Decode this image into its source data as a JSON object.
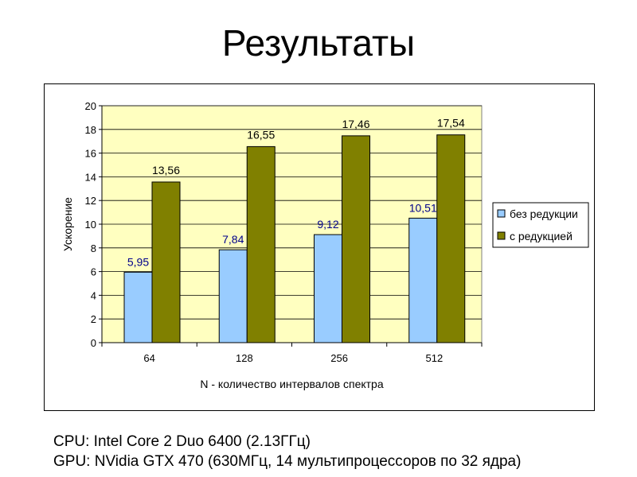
{
  "slide": {
    "title": "Результаты"
  },
  "footer": {
    "cpu": "CPU: Intel Core 2 Duo 6400 (2.13ГГц)",
    "gpu": "GPU: NVidia  GTX 470 (630МГц, 14 мультипроцессоров  по 32 ядра)"
  },
  "colors": {
    "plot_area": "#FFFFC0",
    "series_without": "#99CCFF",
    "series_with": "#808000",
    "label_without": "#00008B",
    "label_with": "#000000"
  },
  "chart_data": {
    "type": "bar",
    "title": "",
    "xlabel": "N - количество интервалов спектра",
    "ylabel": "Ускорение",
    "categories": [
      "64",
      "128",
      "256",
      "512"
    ],
    "ylim": [
      0,
      20
    ],
    "yticks": [
      "0",
      "2",
      "4",
      "6",
      "8",
      "10",
      "12",
      "14",
      "16",
      "18",
      "20"
    ],
    "grid": true,
    "legend_position": "right",
    "series": [
      {
        "name": "без редукции",
        "values": [
          5.95,
          7.84,
          9.12,
          10.51
        ],
        "labels": [
          "5,95",
          "7,84",
          "9,12",
          "10,51"
        ]
      },
      {
        "name": "с редукцией",
        "values": [
          13.56,
          16.55,
          17.46,
          17.54
        ],
        "labels": [
          "13,56",
          "16,55",
          "17,46",
          "17,54"
        ]
      }
    ]
  }
}
